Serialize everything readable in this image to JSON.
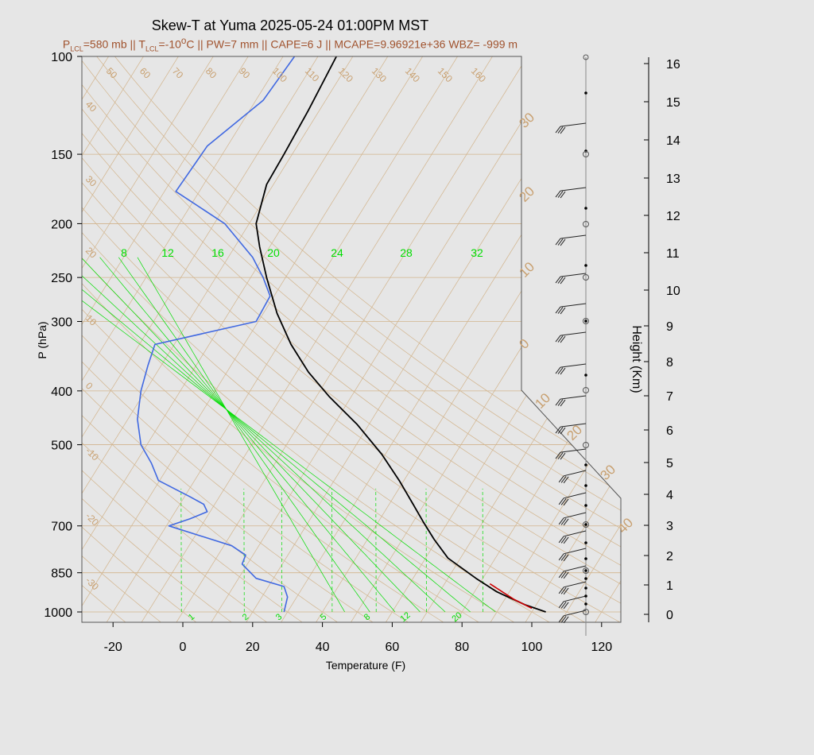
{
  "header": {
    "title": "Skew-T at Yuma 2025-05-24 01:00PM MST",
    "subtitle_parts": {
      "p_lcl_prefix": "P",
      "p_lcl_sub": "LCL",
      "p_lcl_value": "=580 mb || T",
      "t_lcl_sub": "LCL",
      "t_lcl_value": "=-10",
      "deg_sup": "o",
      "rest": "C || PW=7 mm || CAPE=6 J || MCAPE=9.96921e+36 WBZ= -999 m"
    }
  },
  "colors": {
    "background": "#e6e6e6",
    "isotherm": "#d2b48c",
    "isotherm_label": "#c8a070",
    "mixing_ratio": "#00dd00",
    "temperature": "#000000",
    "dewpoint": "#4169e1",
    "parcel": "#cc0000",
    "frame": "#333333"
  },
  "chart_data": {
    "type": "line",
    "title": "Skew-T at Yuma 2025-05-24 01:00PM MST",
    "xlabel": "Temperature (F)",
    "ylabel": "P (hPa)",
    "y2label": "Height (Km)",
    "x_ticks": [
      "-20",
      "0",
      "20",
      "40",
      "60",
      "80",
      "100",
      "120"
    ],
    "x_tick_values": [
      -20,
      0,
      20,
      40,
      60,
      80,
      100,
      120
    ],
    "y_ticks": [
      "100",
      "150",
      "200",
      "250",
      "300",
      "400",
      "500",
      "700",
      "850",
      "1000"
    ],
    "y_tick_values": [
      100,
      150,
      200,
      250,
      300,
      400,
      500,
      700,
      850,
      1000
    ],
    "height_ticks": [
      "0",
      "1",
      "2",
      "3",
      "4",
      "5",
      "6",
      "7",
      "8",
      "9",
      "10",
      "11",
      "12",
      "13",
      "14",
      "15",
      "16"
    ],
    "isotherm_labels_top": [
      "50",
      "60",
      "70",
      "80",
      "90",
      "100",
      "110",
      "120",
      "130",
      "140",
      "150",
      "160"
    ],
    "isotherm_labels_left": [
      "40",
      "30",
      "20",
      "10",
      "0",
      "-10",
      "-20",
      "-30"
    ],
    "isotherm_labels_right": [
      "30",
      "20",
      "10",
      "0",
      "10",
      "20",
      "30",
      "40"
    ],
    "mixing_ratio_labels_top": [
      "8",
      "12",
      "16",
      "20",
      "24",
      "28",
      "32"
    ],
    "mixing_ratio_labels_bottom": [
      "1",
      "2",
      "3",
      "5",
      "8",
      "12",
      "20"
    ],
    "series": [
      {
        "name": "Temperature",
        "points": [
          [
            104,
            1000
          ],
          [
            98,
            970
          ],
          [
            90,
            920
          ],
          [
            84,
            870
          ],
          [
            76,
            800
          ],
          [
            72,
            740
          ],
          [
            69,
            690
          ],
          [
            66,
            640
          ],
          [
            62,
            580
          ],
          [
            57,
            520
          ],
          [
            50,
            460
          ],
          [
            42,
            410
          ],
          [
            36,
            370
          ],
          [
            31,
            330
          ],
          [
            27,
            290
          ],
          [
            24,
            250
          ],
          [
            22,
            220
          ],
          [
            21,
            200
          ],
          [
            24,
            170
          ],
          [
            29,
            150
          ],
          [
            36,
            125
          ],
          [
            44,
            100
          ]
        ]
      },
      {
        "name": "Dewpoint",
        "points": [
          [
            29,
            1000
          ],
          [
            30,
            940
          ],
          [
            29,
            900
          ],
          [
            21,
            870
          ],
          [
            17,
            820
          ],
          [
            18,
            790
          ],
          [
            14,
            760
          ],
          [
            -4,
            700
          ],
          [
            2,
            680
          ],
          [
            7,
            660
          ],
          [
            6,
            640
          ],
          [
            2,
            620
          ],
          [
            -7,
            580
          ],
          [
            -9,
            540
          ],
          [
            -12,
            500
          ],
          [
            -13,
            450
          ],
          [
            -12,
            400
          ],
          [
            -10,
            360
          ],
          [
            -8,
            330
          ],
          [
            21,
            300
          ],
          [
            25,
            270
          ],
          [
            23,
            250
          ],
          [
            20,
            230
          ],
          [
            12,
            200
          ],
          [
            -2,
            175
          ],
          [
            7,
            145
          ],
          [
            23,
            120
          ],
          [
            32,
            100
          ]
        ]
      },
      {
        "name": "Parcel",
        "points": [
          [
            100,
            985
          ],
          [
            95,
            950
          ],
          [
            88,
            890
          ]
        ]
      }
    ],
    "xlim": [
      -28,
      125
    ],
    "ylim": [
      1020,
      100
    ]
  }
}
